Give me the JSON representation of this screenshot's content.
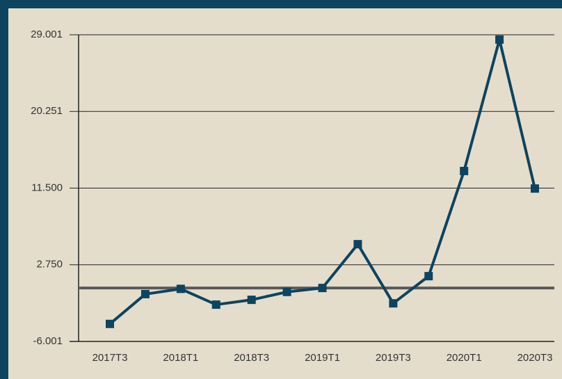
{
  "chart_data": {
    "type": "line",
    "categories": [
      "2017T3",
      null,
      "2018T1",
      null,
      "2018T3",
      null,
      "2019T1",
      null,
      "2019T3",
      null,
      "2020T1",
      null,
      "2020T3"
    ],
    "series": [
      {
        "color": "#0d4460",
        "values": [
          -4000,
          -600,
          0,
          -1800,
          -1250,
          -350,
          100,
          5100,
          -1650,
          1450,
          13450,
          28450,
          11450
        ]
      }
    ],
    "reference_line": {
      "value": 100,
      "color": "#5a5a5a"
    },
    "ylim": [
      -6001,
      29001
    ],
    "yticks": [
      {
        "value": -6001,
        "label": "-6.001"
      },
      {
        "value": 2750,
        "label": "2.750"
      },
      {
        "value": 11500,
        "label": "11.500"
      },
      {
        "value": 20251,
        "label": "20.251"
      },
      {
        "value": 29001,
        "label": "29.001"
      }
    ],
    "grid": true
  }
}
